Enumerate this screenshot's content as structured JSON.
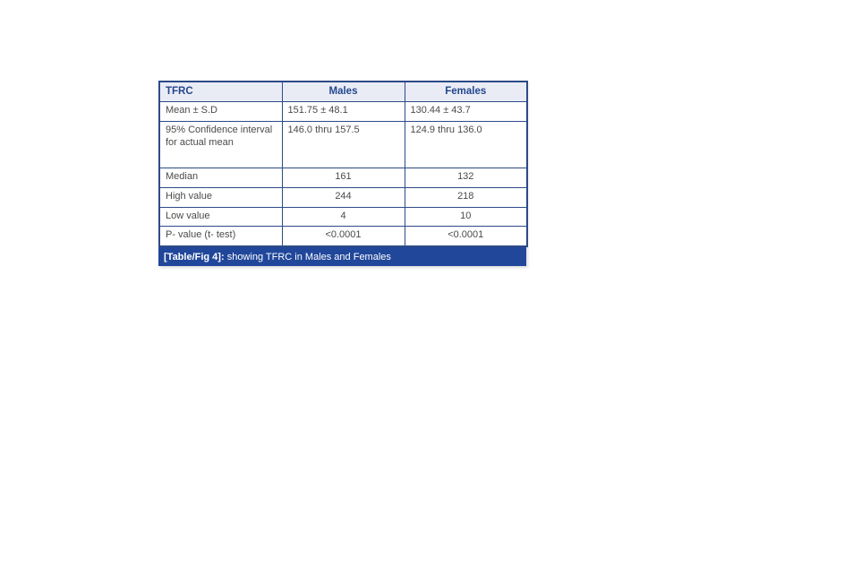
{
  "table": {
    "headers": {
      "col0": "TFRC",
      "col1": "Males",
      "col2": "Females"
    },
    "rows": [
      {
        "label": "Mean ± S.D",
        "males": "151.75 ± 48.1",
        "females": "130.44 ± 43.7"
      },
      {
        "label": "95% Confidence interval for actual mean",
        "males": "146.0 thru 157.5",
        "females": "124.9 thru 136.0"
      },
      {
        "label": "Median",
        "males": "161",
        "females": "132"
      },
      {
        "label": "High value",
        "males": "244",
        "females": "218"
      },
      {
        "label": "Low value",
        "males": "4",
        "females": "10"
      },
      {
        "label": "P- value (t- test)",
        "males": "<0.0001",
        "females": "<0.0001"
      }
    ],
    "caption": {
      "label": "[Table/Fig 4]:",
      "text": " showing TFRC in Males and Females"
    }
  },
  "colors": {
    "border_navy": "#2d4a87",
    "header_bg": "#e9ecf5",
    "header_text": "#24468f",
    "body_text": "#4a4a4a",
    "caption_bg": "#21479a",
    "caption_text": "#ffffff"
  }
}
